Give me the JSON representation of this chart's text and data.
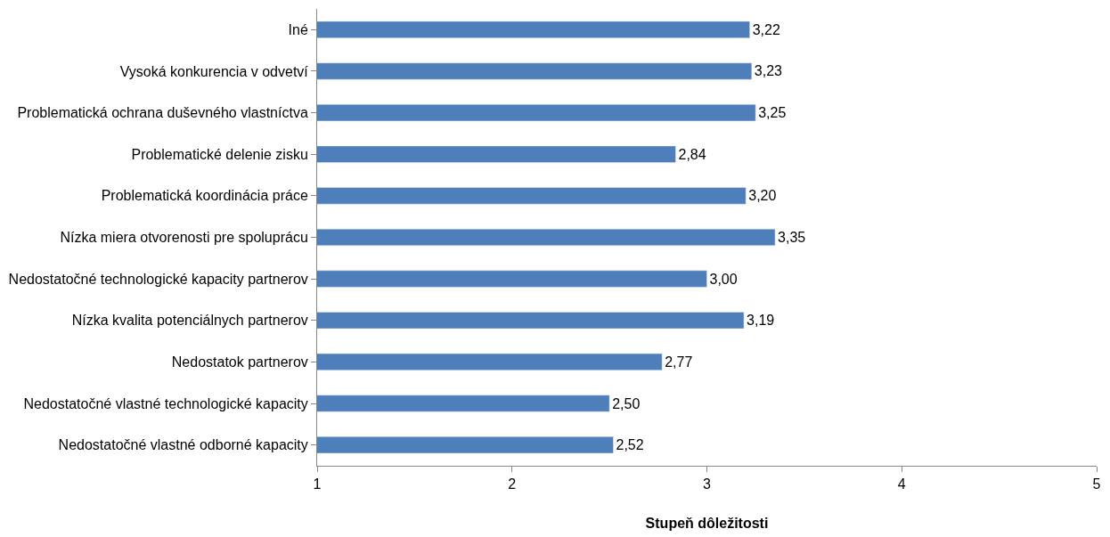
{
  "chart_data": {
    "type": "bar",
    "orientation": "horizontal",
    "xlabel": "Stupeň dôležitosti",
    "categories": [
      "Iné",
      "Vysoká konkurencia v odvetví",
      "Problematická ochrana duševného vlastníctva",
      "Problematické delenie zisku",
      "Problematická koordinácia práce",
      "Nízka miera otvorenosti pre spoluprácu",
      "Nedostatočné technologické kapacity partnerov",
      "Nízka kvalita potenciálnych partnerov",
      "Nedostatok partnerov",
      "Nedostatočné vlastné technologické kapacity",
      "Nedostatočné vlastné odborné kapacity"
    ],
    "values": [
      3.22,
      3.23,
      3.25,
      2.84,
      3.2,
      3.35,
      3.0,
      3.19,
      2.77,
      2.5,
      2.52
    ],
    "value_labels": [
      "3,22",
      "3,23",
      "3,25",
      "2,84",
      "3,20",
      "3,35",
      "3,00",
      "3,19",
      "2,77",
      "2,50",
      "2,52"
    ],
    "color": "#4f7fba",
    "xlim": [
      1,
      5
    ],
    "xticks": [
      1,
      2,
      3,
      4,
      5
    ]
  }
}
